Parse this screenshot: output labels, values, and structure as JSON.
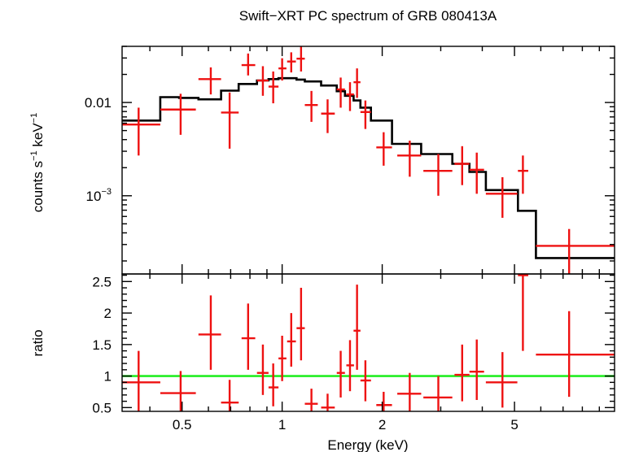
{
  "chart_data": [
    {
      "type": "scatter",
      "panel": "spectrum",
      "title": "Swift−XRT PC spectrum of GRB 080413A",
      "ylabel_parts": [
        "counts s",
        "−1",
        " keV",
        "−1"
      ],
      "xlabel": "Energy (keV)",
      "x_scale": "log",
      "y_scale": "log",
      "xlim": [
        0.33,
        10.0
      ],
      "ylim": [
        0.000145,
        0.04
      ],
      "y_ticks": [
        {
          "value": 0.01,
          "label": "0.01"
        },
        {
          "value": 0.001,
          "label_base": "10",
          "label_exp": "−3"
        }
      ],
      "colors": {
        "data": "#ee1111",
        "model": "#000000"
      },
      "data_points": [
        {
          "x": 0.37,
          "xlo": 0.33,
          "xhi": 0.43,
          "y": 0.0058,
          "ylo": 0.0027,
          "yhi": 0.0088
        },
        {
          "x": 0.495,
          "xlo": 0.43,
          "xhi": 0.55,
          "y": 0.0084,
          "ylo": 0.0045,
          "yhi": 0.0124
        },
        {
          "x": 0.61,
          "xlo": 0.56,
          "xhi": 0.655,
          "y": 0.0178,
          "ylo": 0.0122,
          "yhi": 0.0238
        },
        {
          "x": 0.695,
          "xlo": 0.655,
          "xhi": 0.74,
          "y": 0.0078,
          "ylo": 0.0032,
          "yhi": 0.0128
        },
        {
          "x": 0.79,
          "xlo": 0.755,
          "xhi": 0.83,
          "y": 0.0252,
          "ylo": 0.0195,
          "yhi": 0.0335
        },
        {
          "x": 0.875,
          "xlo": 0.84,
          "xhi": 0.91,
          "y": 0.0172,
          "ylo": 0.0118,
          "yhi": 0.0245
        },
        {
          "x": 0.94,
          "xlo": 0.91,
          "xhi": 0.975,
          "y": 0.0148,
          "ylo": 0.0098,
          "yhi": 0.0215
        },
        {
          "x": 1.0,
          "xlo": 0.975,
          "xhi": 1.03,
          "y": 0.0232,
          "ylo": 0.0172,
          "yhi": 0.0298
        },
        {
          "x": 1.065,
          "xlo": 1.035,
          "xhi": 1.1,
          "y": 0.0275,
          "ylo": 0.021,
          "yhi": 0.0345
        },
        {
          "x": 1.14,
          "xlo": 1.105,
          "xhi": 1.17,
          "y": 0.0295,
          "ylo": 0.0215,
          "yhi": 0.04
        },
        {
          "x": 1.225,
          "xlo": 1.17,
          "xhi": 1.28,
          "y": 0.0094,
          "ylo": 0.0062,
          "yhi": 0.0133
        },
        {
          "x": 1.37,
          "xlo": 1.31,
          "xhi": 1.44,
          "y": 0.0076,
          "ylo": 0.0047,
          "yhi": 0.0108
        },
        {
          "x": 1.5,
          "xlo": 1.46,
          "xhi": 1.545,
          "y": 0.0138,
          "ylo": 0.0088,
          "yhi": 0.0185
        },
        {
          "x": 1.6,
          "xlo": 1.56,
          "xhi": 1.645,
          "y": 0.0122,
          "ylo": 0.0081,
          "yhi": 0.0165
        },
        {
          "x": 1.68,
          "xlo": 1.64,
          "xhi": 1.72,
          "y": 0.0165,
          "ylo": 0.0112,
          "yhi": 0.0232
        },
        {
          "x": 1.78,
          "xlo": 1.72,
          "xhi": 1.85,
          "y": 0.0079,
          "ylo": 0.0052,
          "yhi": 0.0105
        },
        {
          "x": 2.02,
          "xlo": 1.92,
          "xhi": 2.14,
          "y": 0.0033,
          "ylo": 0.0021,
          "yhi": 0.0048
        },
        {
          "x": 2.42,
          "xlo": 2.22,
          "xhi": 2.62,
          "y": 0.0027,
          "ylo": 0.0016,
          "yhi": 0.0039
        },
        {
          "x": 2.95,
          "xlo": 2.66,
          "xhi": 3.25,
          "y": 0.00185,
          "ylo": 0.001,
          "yhi": 0.0028
        },
        {
          "x": 3.48,
          "xlo": 3.3,
          "xhi": 3.66,
          "y": 0.0022,
          "ylo": 0.0013,
          "yhi": 0.0034
        },
        {
          "x": 3.85,
          "xlo": 3.66,
          "xhi": 4.05,
          "y": 0.0019,
          "ylo": 0.00105,
          "yhi": 0.0029
        },
        {
          "x": 4.6,
          "xlo": 4.1,
          "xhi": 5.1,
          "y": 0.00105,
          "ylo": 0.00058,
          "yhi": 0.00158
        },
        {
          "x": 5.3,
          "xlo": 5.12,
          "xhi": 5.5,
          "y": 0.00185,
          "ylo": 0.00105,
          "yhi": 0.0027
        },
        {
          "x": 7.3,
          "xlo": 5.8,
          "xhi": 10.0,
          "y": 0.00029,
          "ylo": 0.000145,
          "yhi": 0.00044
        }
      ],
      "model_steps": [
        {
          "x0": 0.33,
          "x1": 0.43,
          "y": 0.0064
        },
        {
          "x0": 0.43,
          "x1": 0.49,
          "y": 0.0114
        },
        {
          "x0": 0.49,
          "x1": 0.56,
          "y": 0.0112
        },
        {
          "x0": 0.56,
          "x1": 0.655,
          "y": 0.0108
        },
        {
          "x0": 0.655,
          "x1": 0.74,
          "y": 0.0134
        },
        {
          "x0": 0.74,
          "x1": 0.84,
          "y": 0.0158
        },
        {
          "x0": 0.84,
          "x1": 0.91,
          "y": 0.0172
        },
        {
          "x0": 0.91,
          "x1": 0.975,
          "y": 0.0178
        },
        {
          "x0": 0.975,
          "x1": 1.105,
          "y": 0.0182
        },
        {
          "x0": 1.105,
          "x1": 1.17,
          "y": 0.0176
        },
        {
          "x0": 1.17,
          "x1": 1.31,
          "y": 0.0168
        },
        {
          "x0": 1.31,
          "x1": 1.46,
          "y": 0.0152
        },
        {
          "x0": 1.46,
          "x1": 1.545,
          "y": 0.0132
        },
        {
          "x0": 1.545,
          "x1": 1.64,
          "y": 0.0118
        },
        {
          "x0": 1.64,
          "x1": 1.72,
          "y": 0.0105
        },
        {
          "x0": 1.72,
          "x1": 1.85,
          "y": 0.0088
        },
        {
          "x0": 1.85,
          "x1": 2.14,
          "y": 0.0064
        },
        {
          "x0": 2.14,
          "x1": 2.62,
          "y": 0.0036
        },
        {
          "x0": 2.62,
          "x1": 3.25,
          "y": 0.0028
        },
        {
          "x0": 3.25,
          "x1": 3.66,
          "y": 0.0022
        },
        {
          "x0": 3.66,
          "x1": 4.1,
          "y": 0.0018
        },
        {
          "x0": 4.1,
          "x1": 5.12,
          "y": 0.00115
        },
        {
          "x0": 5.12,
          "x1": 5.8,
          "y": 0.00069
        },
        {
          "x0": 5.8,
          "x1": 10.0,
          "y": 0.000215
        }
      ]
    },
    {
      "type": "scatter",
      "panel": "ratio",
      "ylabel": "ratio",
      "xlabel": "Energy (keV)",
      "x_scale": "log",
      "xlim": [
        0.33,
        10.0
      ],
      "ylim": [
        0.44,
        2.62
      ],
      "x_ticks": [
        {
          "value": 0.5,
          "label": "0.5"
        },
        {
          "value": 1,
          "label": "1"
        },
        {
          "value": 2,
          "label": "2"
        },
        {
          "value": 5,
          "label": "5"
        }
      ],
      "y_ticks": [
        {
          "value": 0.5,
          "label": "0.5"
        },
        {
          "value": 1,
          "label": "1"
        },
        {
          "value": 1.5,
          "label": "1.5"
        },
        {
          "value": 2,
          "label": "2"
        },
        {
          "value": 2.5,
          "label": "2.5"
        }
      ],
      "reference_line": {
        "y": 1,
        "color": "#22ee22"
      },
      "colors": {
        "data": "#ee1111"
      },
      "data_points": [
        {
          "x": 0.37,
          "xlo": 0.33,
          "xhi": 0.43,
          "y": 0.9,
          "ylo": 0.44,
          "yhi": 1.4
        },
        {
          "x": 0.495,
          "xlo": 0.43,
          "xhi": 0.55,
          "y": 0.73,
          "ylo": 0.44,
          "yhi": 1.08
        },
        {
          "x": 0.61,
          "xlo": 0.56,
          "xhi": 0.655,
          "y": 1.66,
          "ylo": 1.1,
          "yhi": 2.28
        },
        {
          "x": 0.695,
          "xlo": 0.655,
          "xhi": 0.74,
          "y": 0.58,
          "ylo": 0.44,
          "yhi": 0.94
        },
        {
          "x": 0.79,
          "xlo": 0.755,
          "xhi": 0.83,
          "y": 1.6,
          "ylo": 1.1,
          "yhi": 2.15
        },
        {
          "x": 0.875,
          "xlo": 0.84,
          "xhi": 0.91,
          "y": 1.05,
          "ylo": 0.7,
          "yhi": 1.5
        },
        {
          "x": 0.94,
          "xlo": 0.91,
          "xhi": 0.975,
          "y": 0.82,
          "ylo": 0.52,
          "yhi": 1.2
        },
        {
          "x": 1.0,
          "xlo": 0.975,
          "xhi": 1.03,
          "y": 1.28,
          "ylo": 0.92,
          "yhi": 1.64
        },
        {
          "x": 1.065,
          "xlo": 1.035,
          "xhi": 1.1,
          "y": 1.55,
          "ylo": 1.15,
          "yhi": 2.0
        },
        {
          "x": 1.14,
          "xlo": 1.105,
          "xhi": 1.17,
          "y": 1.76,
          "ylo": 1.25,
          "yhi": 2.4
        },
        {
          "x": 1.225,
          "xlo": 1.17,
          "xhi": 1.28,
          "y": 0.56,
          "ylo": 0.44,
          "yhi": 0.8
        },
        {
          "x": 1.37,
          "xlo": 1.31,
          "xhi": 1.44,
          "y": 0.5,
          "ylo": 0.44,
          "yhi": 0.72
        },
        {
          "x": 1.5,
          "xlo": 1.46,
          "xhi": 1.545,
          "y": 1.05,
          "ylo": 0.66,
          "yhi": 1.4
        },
        {
          "x": 1.6,
          "xlo": 1.56,
          "xhi": 1.645,
          "y": 1.17,
          "ylo": 0.76,
          "yhi": 1.57
        },
        {
          "x": 1.68,
          "xlo": 1.64,
          "xhi": 1.72,
          "y": 1.72,
          "ylo": 1.1,
          "yhi": 2.45
        },
        {
          "x": 1.78,
          "xlo": 1.72,
          "xhi": 1.85,
          "y": 0.93,
          "ylo": 0.6,
          "yhi": 1.25
        },
        {
          "x": 2.02,
          "xlo": 1.92,
          "xhi": 2.14,
          "y": 0.54,
          "ylo": 0.44,
          "yhi": 0.75
        },
        {
          "x": 2.42,
          "xlo": 2.22,
          "xhi": 2.62,
          "y": 0.72,
          "ylo": 0.44,
          "yhi": 1.05
        },
        {
          "x": 2.95,
          "xlo": 2.66,
          "xhi": 3.25,
          "y": 0.66,
          "ylo": 0.44,
          "yhi": 1.0
        },
        {
          "x": 3.48,
          "xlo": 3.3,
          "xhi": 3.66,
          "y": 1.02,
          "ylo": 0.6,
          "yhi": 1.5
        },
        {
          "x": 3.85,
          "xlo": 3.66,
          "xhi": 4.05,
          "y": 1.07,
          "ylo": 0.62,
          "yhi": 1.58
        },
        {
          "x": 4.6,
          "xlo": 4.1,
          "xhi": 5.1,
          "y": 0.9,
          "ylo": 0.5,
          "yhi": 1.38
        },
        {
          "x": 5.3,
          "xlo": 5.12,
          "xhi": 5.5,
          "y": 2.6,
          "ylo": 1.4,
          "yhi": 2.62
        },
        {
          "x": 7.3,
          "xlo": 5.8,
          "xhi": 10.0,
          "y": 1.34,
          "ylo": 0.67,
          "yhi": 2.03
        }
      ]
    }
  ]
}
